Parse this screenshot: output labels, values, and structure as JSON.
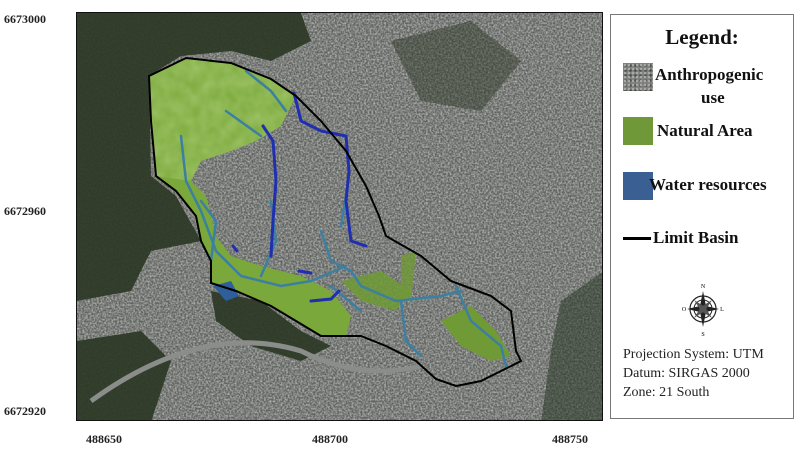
{
  "axes": {
    "y_ticks": [
      "6673000",
      "6672960",
      "6672920"
    ],
    "x_ticks": [
      "488650",
      "488700",
      "488750"
    ]
  },
  "map": {
    "layers": [
      "satellite-imagery",
      "natural-area",
      "water-resources",
      "limit-basin"
    ],
    "colors": {
      "natural_area": "#7aa83a",
      "water_resources": "#1f2fb0",
      "streams": "#3d7fa0",
      "limit_basin": "#000000",
      "urban": "#6b6e6a",
      "forest": "#2e3a26"
    }
  },
  "legend": {
    "title": "Legend:",
    "items": [
      {
        "label_line1": "Anthropogenic",
        "label_line2": "use",
        "swatch": "#7d7f7b"
      },
      {
        "label": "Natural Area",
        "swatch": "#6f9838"
      },
      {
        "label": "Water resources",
        "swatch": "#3a5f92"
      },
      {
        "label": "Limit Basin",
        "swatch": "#000000"
      }
    ],
    "compass": {
      "n": "N",
      "s": "S",
      "w": "O",
      "e": "L"
    },
    "projection": "Projection System: UTM",
    "datum": "Datum: SIRGAS 2000",
    "zone": "Zone: 21 South"
  }
}
